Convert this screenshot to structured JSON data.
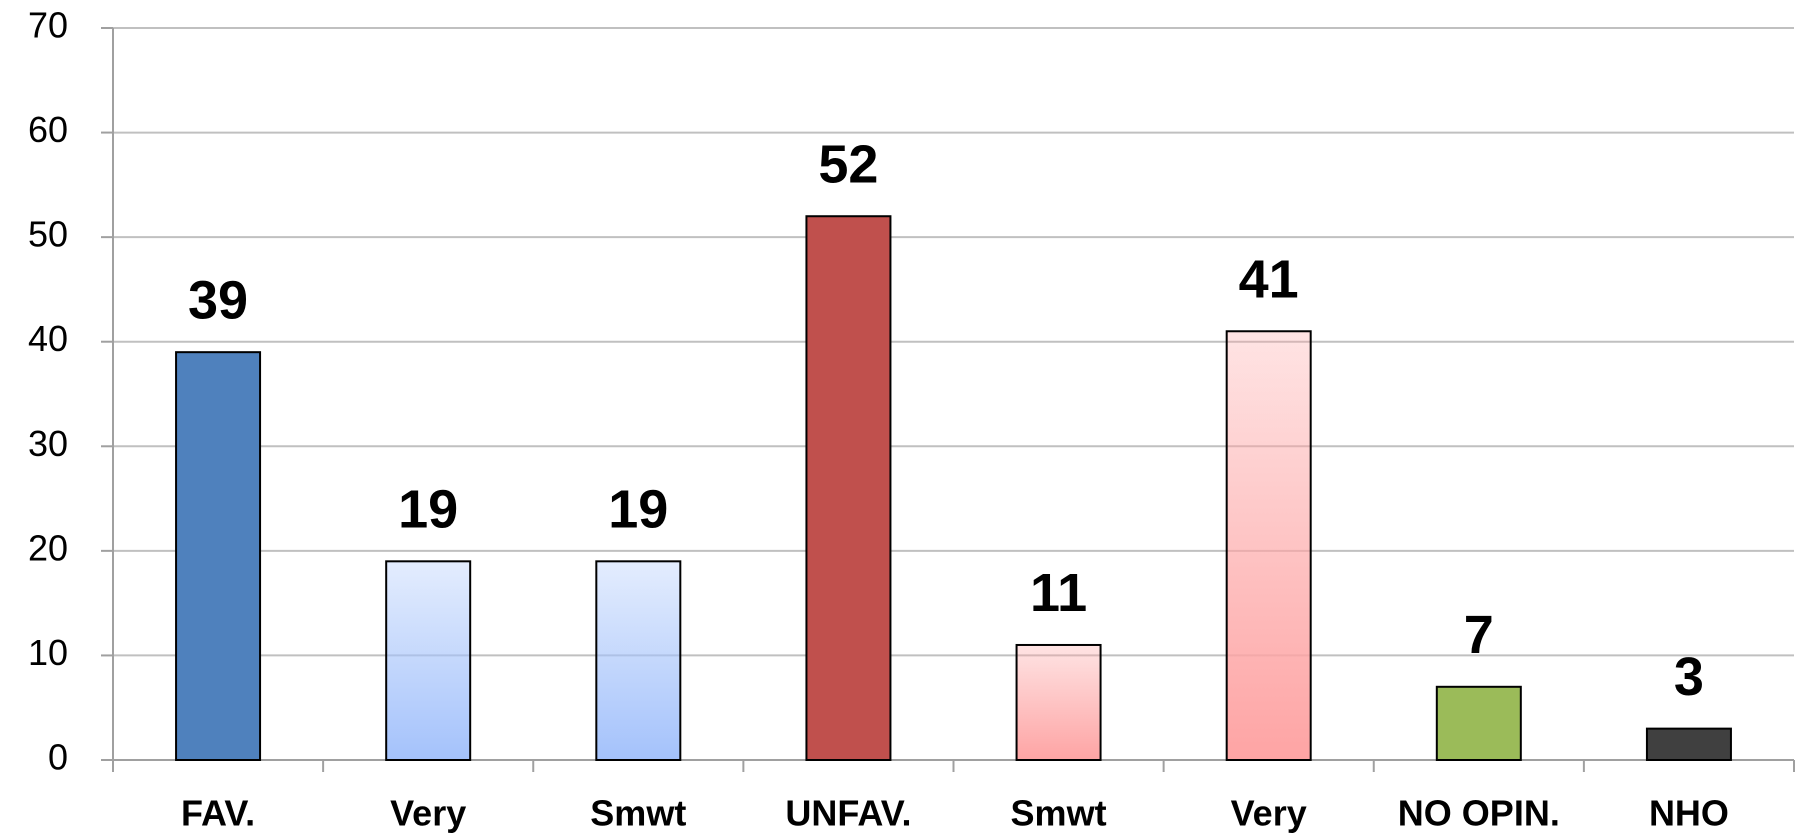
{
  "chart_data": {
    "type": "bar",
    "categories": [
      "FAV.",
      "Very",
      "Smwt",
      "UNFAV.",
      "Smwt",
      "Very",
      "NO OPIN.",
      "NHO"
    ],
    "values": [
      39,
      19,
      19,
      52,
      11,
      41,
      7,
      3
    ],
    "colors": [
      "#4f81bd",
      "#a4c2fb",
      "#a4c2fb",
      "#c0504d",
      "#fea4a4",
      "#fea4a4",
      "#9bbb59",
      "#404040"
    ],
    "gradient": [
      false,
      true,
      true,
      false,
      true,
      true,
      false,
      false
    ],
    "ylim": [
      0,
      70
    ],
    "yticks": [
      0,
      10,
      20,
      30,
      40,
      50,
      60,
      70
    ],
    "grid": true
  }
}
